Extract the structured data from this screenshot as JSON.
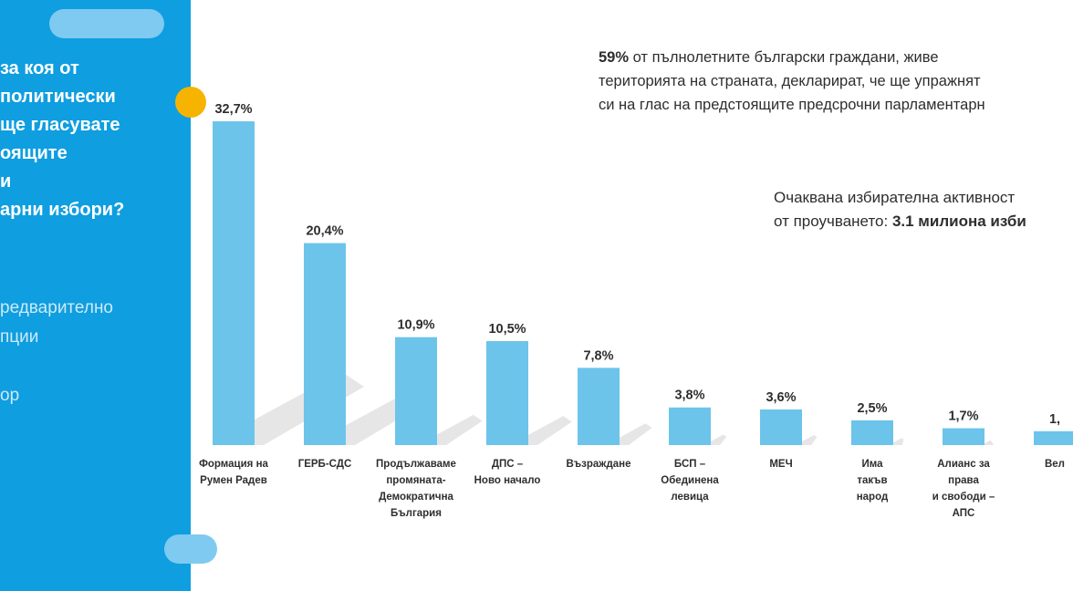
{
  "question_lines": [
    "за коя от",
    "политически",
    "ще гласувате",
    "оящите",
    "и",
    "арни избори?"
  ],
  "note_lines": [
    "редварително",
    "пции",
    "",
    "ор"
  ],
  "info1": {
    "lead": "59%",
    "line1": " от пълнолетните български граждани, живе",
    "line2": "територията на страната, декларират, че ще упражнят",
    "line3": "си на глас на предстоящите предсрочни парламентарн"
  },
  "info2": {
    "line1": "Очаквана избирателна активност",
    "line2_pre": "от проучването: ",
    "line2_bold": "3.1 милиона изби"
  },
  "colors": {
    "panel": "#0f9ee0",
    "bar": "#6cc4ea",
    "dot": "#f6b400"
  },
  "chart_data": {
    "type": "bar",
    "categories": [
      [
        "Формация на",
        "Румен Радев"
      ],
      [
        "ГЕРБ-СДС"
      ],
      [
        "Продължаваме",
        "промяната-",
        "Демократична",
        "България"
      ],
      [
        "ДПС –",
        "Ново начало"
      ],
      [
        "Възраждане"
      ],
      [
        "БСП –",
        "Обединена",
        "левица"
      ],
      [
        "МЕЧ"
      ],
      [
        "Има",
        "такъв",
        "народ"
      ],
      [
        "Алианс за",
        "права",
        "и свободи –",
        "АПС"
      ],
      [
        "Вел"
      ]
    ],
    "values": [
      32.7,
      20.4,
      10.9,
      10.5,
      7.8,
      3.8,
      3.6,
      2.5,
      1.7,
      1.4
    ],
    "labels": [
      "32,7%",
      "20,4%",
      "10,9%",
      "10,5%",
      "7,8%",
      "3,8%",
      "3,6%",
      "2,5%",
      "1,7%",
      "1,"
    ],
    "ylim": [
      0,
      32.7
    ]
  }
}
